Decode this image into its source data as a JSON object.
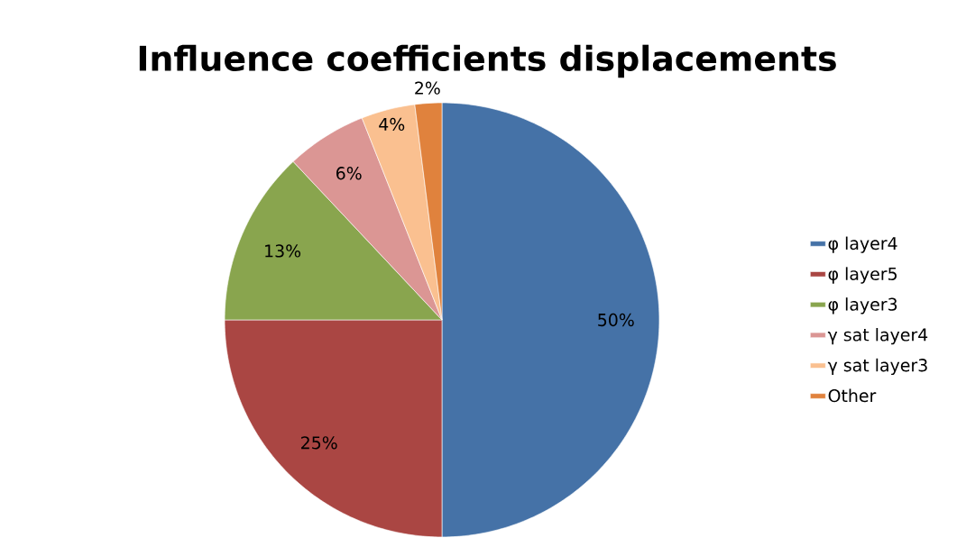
{
  "chart_data": {
    "type": "pie",
    "title": "Influence coefficients  displacements",
    "categories": [
      "φ layer4",
      "φ layer5",
      "φ layer3",
      "γ sat layer4",
      "γ sat layer3",
      "Other"
    ],
    "values": [
      50,
      25,
      13,
      6,
      4,
      2
    ],
    "value_labels": [
      "50%",
      "25%",
      "13%",
      "6%",
      "4%",
      "2%"
    ],
    "colors": [
      "#4572a7",
      "#aa4643",
      "#89a54e",
      "#db9694",
      "#fac090",
      "#e0823d"
    ],
    "legend": "right"
  }
}
